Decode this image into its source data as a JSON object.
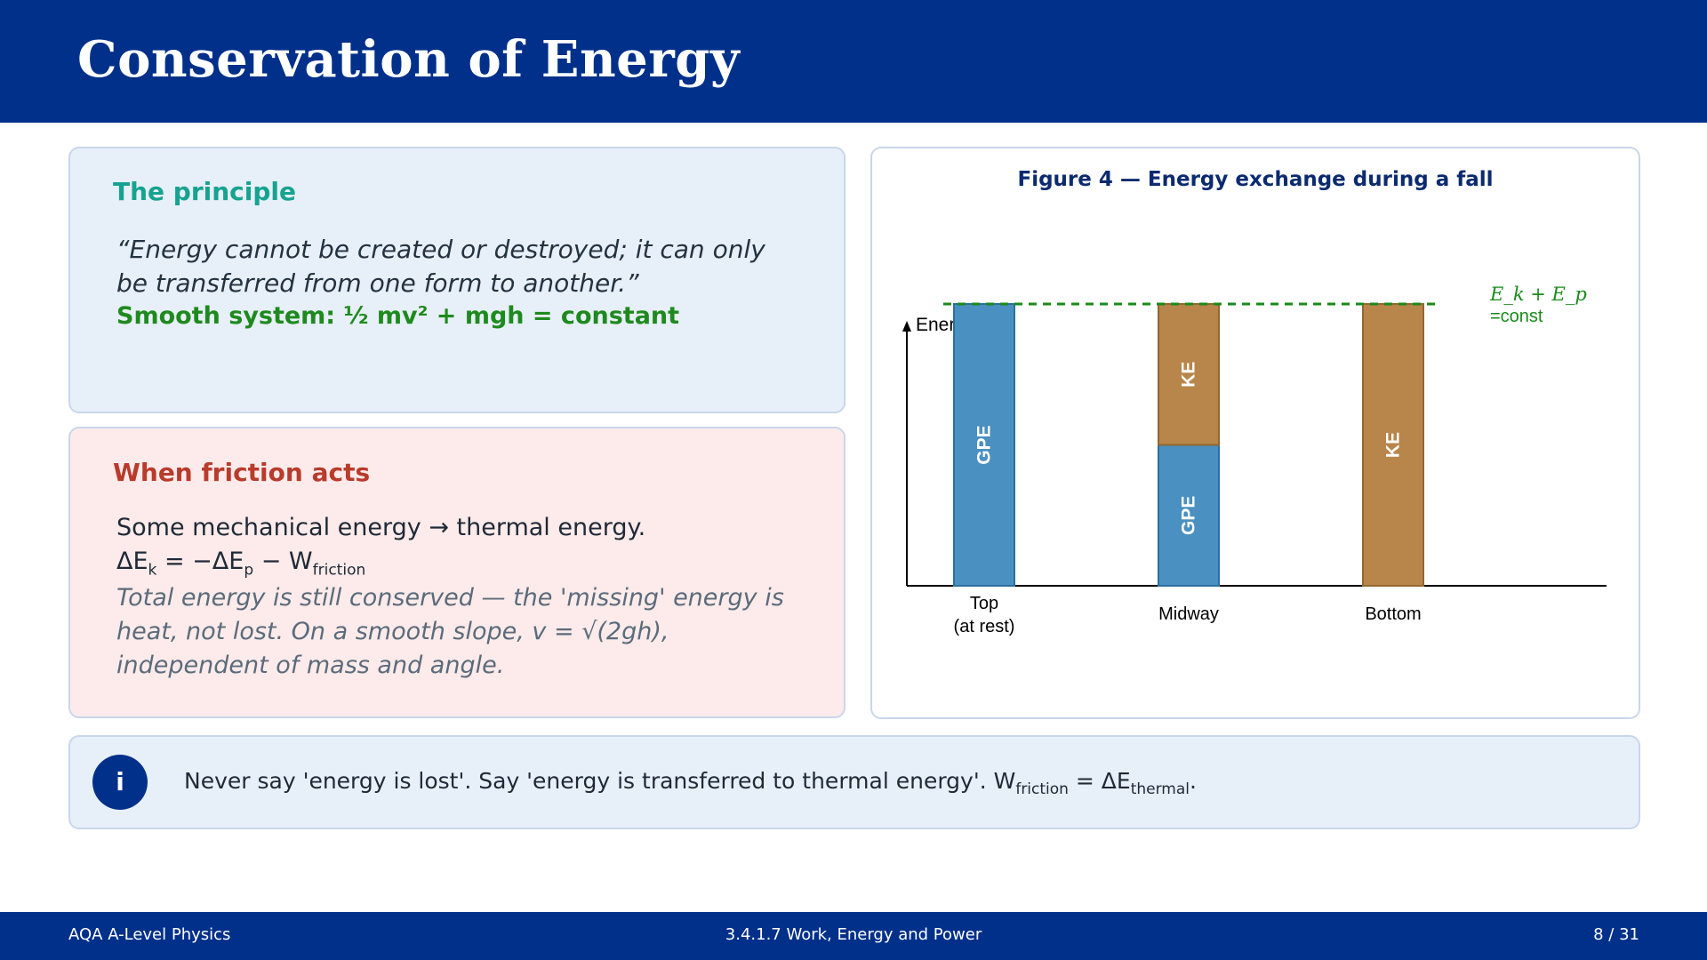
{
  "slide": {
    "title": "Conservation of Energy"
  },
  "principle": {
    "title": "The principle",
    "quote": "“Energy cannot be created or destroyed; it can only be transferred from one form to another.”",
    "equation": "Smooth system:  ½ mv² + mgh = constant"
  },
  "friction": {
    "title": "When friction acts",
    "line1": "Some mechanical energy → thermal energy.",
    "eq_dEk": "ΔE",
    "eq_k": "k",
    "eq_mid": " = −ΔE",
    "eq_p": "p",
    "eq_minus": " − W",
    "eq_friction": "friction",
    "italic": "Total energy is still conserved — the 'missing' energy is heat, not lost. On a smooth slope, v = √(2gh), independent of mass and angle."
  },
  "figure": {
    "title": "Figure 4 — Energy exchange during a fall"
  },
  "chart_data": {
    "type": "bar",
    "stacked": true,
    "categories": [
      "Top\n(at rest)",
      "Midway",
      "Bottom"
    ],
    "series": [
      {
        "name": "GPE",
        "values": [
          1.0,
          0.5,
          0.0
        ],
        "color": "#4a90c0"
      },
      {
        "name": "KE",
        "values": [
          0.0,
          0.5,
          1.0
        ],
        "color": "#b8854a"
      }
    ],
    "ylabel": "Energy",
    "ylim": [
      0,
      1.0
    ],
    "reference_line": {
      "value": 1.0,
      "label_math": "E_k + E_p",
      "label_text": "=const",
      "color": "#1a8a1a",
      "style": "dashed"
    },
    "grid": false,
    "axis_color": "#000000"
  },
  "note": {
    "icon": "info-icon",
    "text_before": "Never say 'energy is lost'. Say 'energy is transferred to thermal energy'. W",
    "sub1": "friction",
    "text_mid": " = ΔE",
    "sub2": "thermal",
    "text_end": "."
  },
  "footer": {
    "left": "AQA A-Level Physics",
    "center": "3.4.1.7  Work, Energy and Power",
    "right": "8 / 31"
  }
}
